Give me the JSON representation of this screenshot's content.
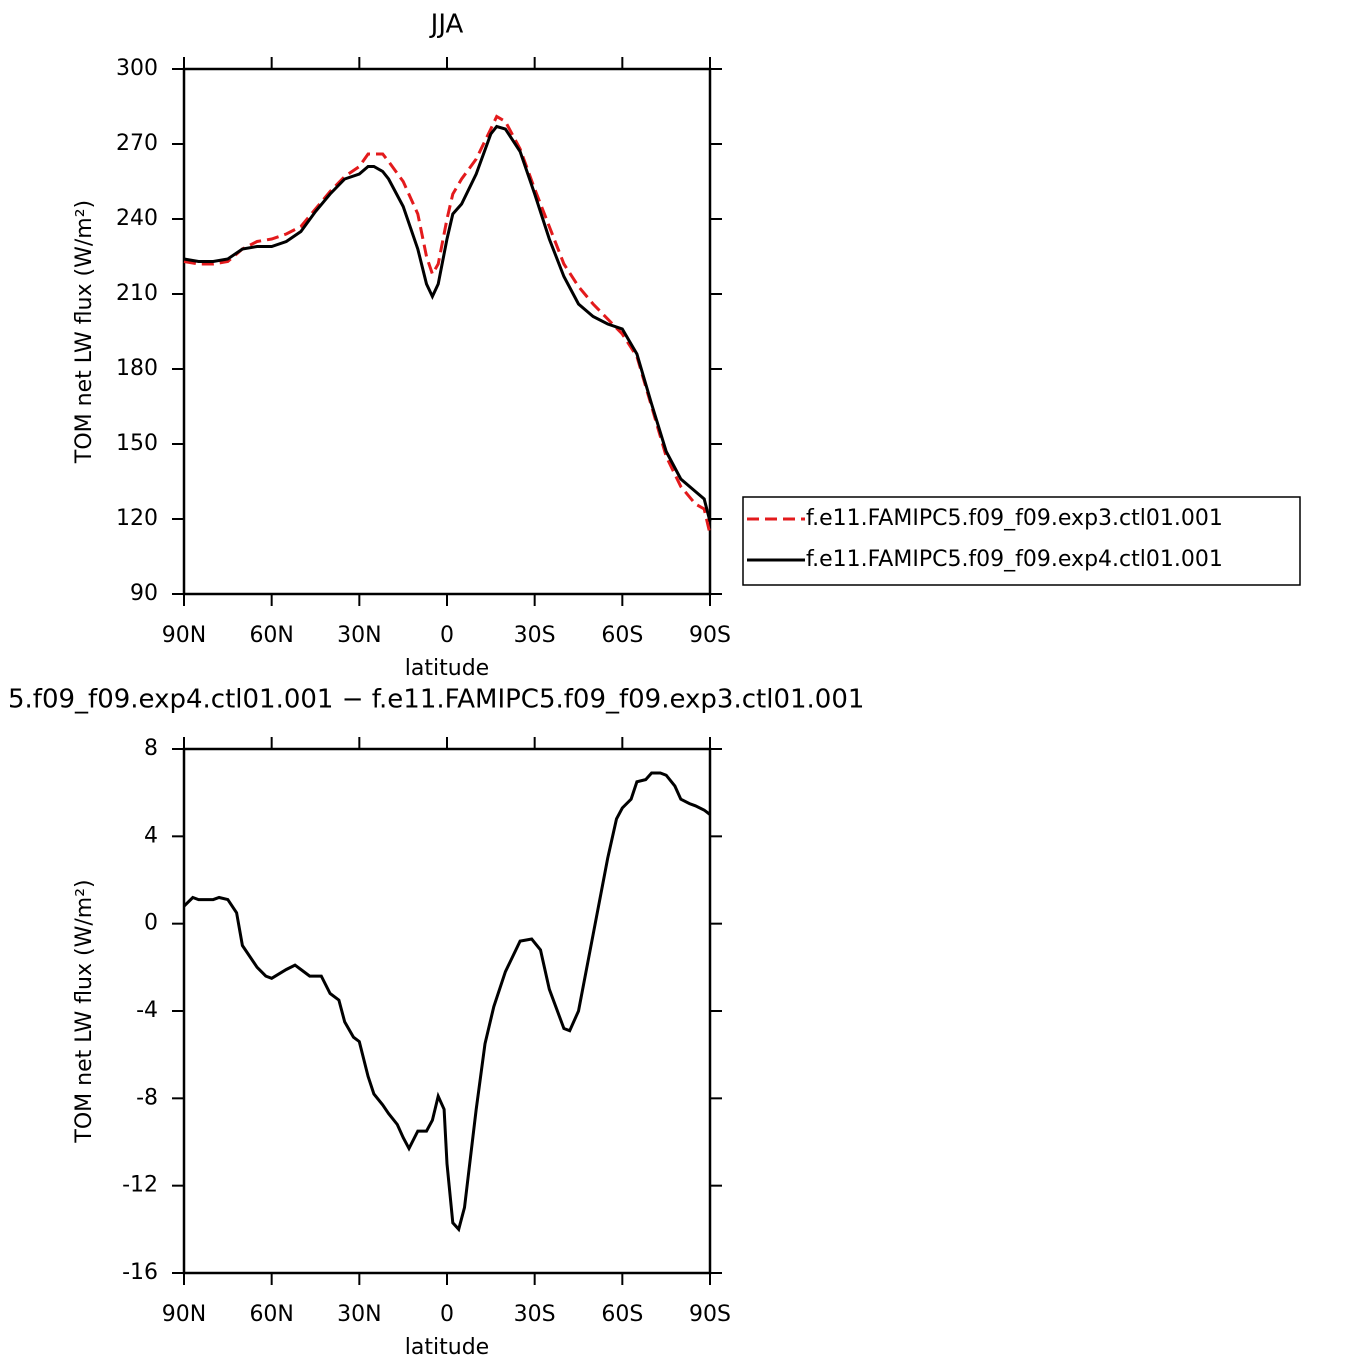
{
  "chart_data": [
    {
      "type": "line",
      "title": "JJA",
      "xlabel": "latitude",
      "ylabel": "TOM net LW flux (W/m²)",
      "x": [
        90,
        85,
        80,
        75,
        70,
        65,
        60,
        55,
        50,
        45,
        40,
        35,
        30,
        27,
        25,
        22,
        20,
        15,
        10,
        7,
        5,
        3,
        0,
        -2,
        -5,
        -10,
        -15,
        -17,
        -20,
        -25,
        -30,
        -35,
        -40,
        -45,
        -50,
        -55,
        -60,
        -65,
        -70,
        -75,
        -80,
        -85,
        -88,
        -90
      ],
      "series": [
        {
          "name": "f.e11.FAMIPC5.f09_f09.exp3.ctl01.001",
          "color": "#e31a1c",
          "linestyle": "dashed",
          "values": [
            223,
            222,
            222,
            223,
            228,
            231,
            232,
            234,
            237,
            244,
            251,
            257,
            261,
            266,
            266,
            266,
            263,
            255,
            242,
            225,
            218,
            222,
            240,
            250,
            256,
            264,
            276,
            281,
            279,
            268,
            252,
            237,
            222,
            213,
            206,
            200,
            194,
            185,
            165,
            145,
            133,
            126,
            124,
            114
          ]
        },
        {
          "name": "f.e11.FAMIPC5.f09_f09.exp4.ctl01.001",
          "color": "#000000",
          "linestyle": "solid",
          "values": [
            224,
            223,
            223,
            224,
            228,
            229,
            229,
            231,
            235,
            243,
            250,
            256,
            258,
            261,
            261,
            259,
            256,
            245,
            228,
            214,
            209,
            214,
            232,
            242,
            246,
            258,
            274,
            277,
            276,
            267,
            250,
            232,
            217,
            206,
            201,
            198,
            196,
            186,
            166,
            147,
            136,
            131,
            128,
            119
          ]
        }
      ],
      "xlim": [
        90,
        -90
      ],
      "xticks": [
        {
          "value": 90,
          "label": "90N"
        },
        {
          "value": 60,
          "label": "60N"
        },
        {
          "value": 30,
          "label": "30N"
        },
        0,
        {
          "value": -30,
          "label": "30S"
        },
        {
          "value": -60,
          "label": "60S"
        },
        {
          "value": -90,
          "label": "90S"
        }
      ],
      "ylim": [
        90,
        300
      ],
      "yticks": [
        90,
        120,
        150,
        180,
        210,
        240,
        270,
        300
      ],
      "legend": "right"
    },
    {
      "type": "line",
      "title": "5.f09_f09.exp4.ctl01.001 − f.e11.FAMIPC5.f09_f09.exp3.ctl01.001",
      "xlabel": "latitude",
      "ylabel": "TOM net LW flux (W/m²)",
      "x": [
        90,
        87,
        85,
        80,
        78,
        75,
        72,
        70,
        65,
        62,
        60,
        55,
        52,
        50,
        47,
        45,
        43,
        40,
        37,
        35,
        32,
        30,
        27,
        25,
        22,
        20,
        17,
        15,
        13,
        10,
        7,
        5,
        3,
        1,
        0,
        -2,
        -4,
        -6,
        -10,
        -13,
        -16,
        -20,
        -25,
        -29,
        -32,
        -35,
        -40,
        -42,
        -45,
        -50,
        -55,
        -58,
        -60,
        -63,
        -65,
        -68,
        -70,
        -73,
        -75,
        -78,
        -80,
        -83,
        -85,
        -88,
        -90
      ],
      "series": [
        {
          "color": "#000000",
          "linestyle": "solid",
          "values": [
            0.8,
            1.2,
            1.1,
            1.1,
            1.2,
            1.1,
            0.5,
            -1.0,
            -2.0,
            -2.4,
            -2.5,
            -2.1,
            -1.9,
            -2.1,
            -2.4,
            -2.4,
            -2.4,
            -3.2,
            -3.5,
            -4.5,
            -5.2,
            -5.4,
            -7.0,
            -7.8,
            -8.3,
            -8.7,
            -9.2,
            -9.8,
            -10.3,
            -9.5,
            -9.5,
            -9.0,
            -7.9,
            -8.5,
            -11,
            -13.7,
            -14.0,
            -13.0,
            -8.5,
            -5.5,
            -3.8,
            -2.2,
            -0.8,
            -0.7,
            -1.2,
            -3.0,
            -4.8,
            -4.9,
            -4.0,
            -0.5,
            3.0,
            4.8,
            5.3,
            5.7,
            6.5,
            6.6,
            6.9,
            6.9,
            6.8,
            6.3,
            5.7,
            5.5,
            5.4,
            5.2,
            5.0
          ]
        }
      ],
      "xlim": [
        90,
        -90
      ],
      "xticks": [
        {
          "value": 90,
          "label": "90N"
        },
        {
          "value": 60,
          "label": "60N"
        },
        {
          "value": 30,
          "label": "30N"
        },
        0,
        {
          "value": -30,
          "label": "30S"
        },
        {
          "value": -60,
          "label": "60S"
        },
        {
          "value": -90,
          "label": "90S"
        }
      ],
      "ylim": [
        -16,
        8
      ],
      "yticks": [
        -16,
        -12,
        -8,
        -4,
        0,
        4,
        8
      ]
    }
  ]
}
